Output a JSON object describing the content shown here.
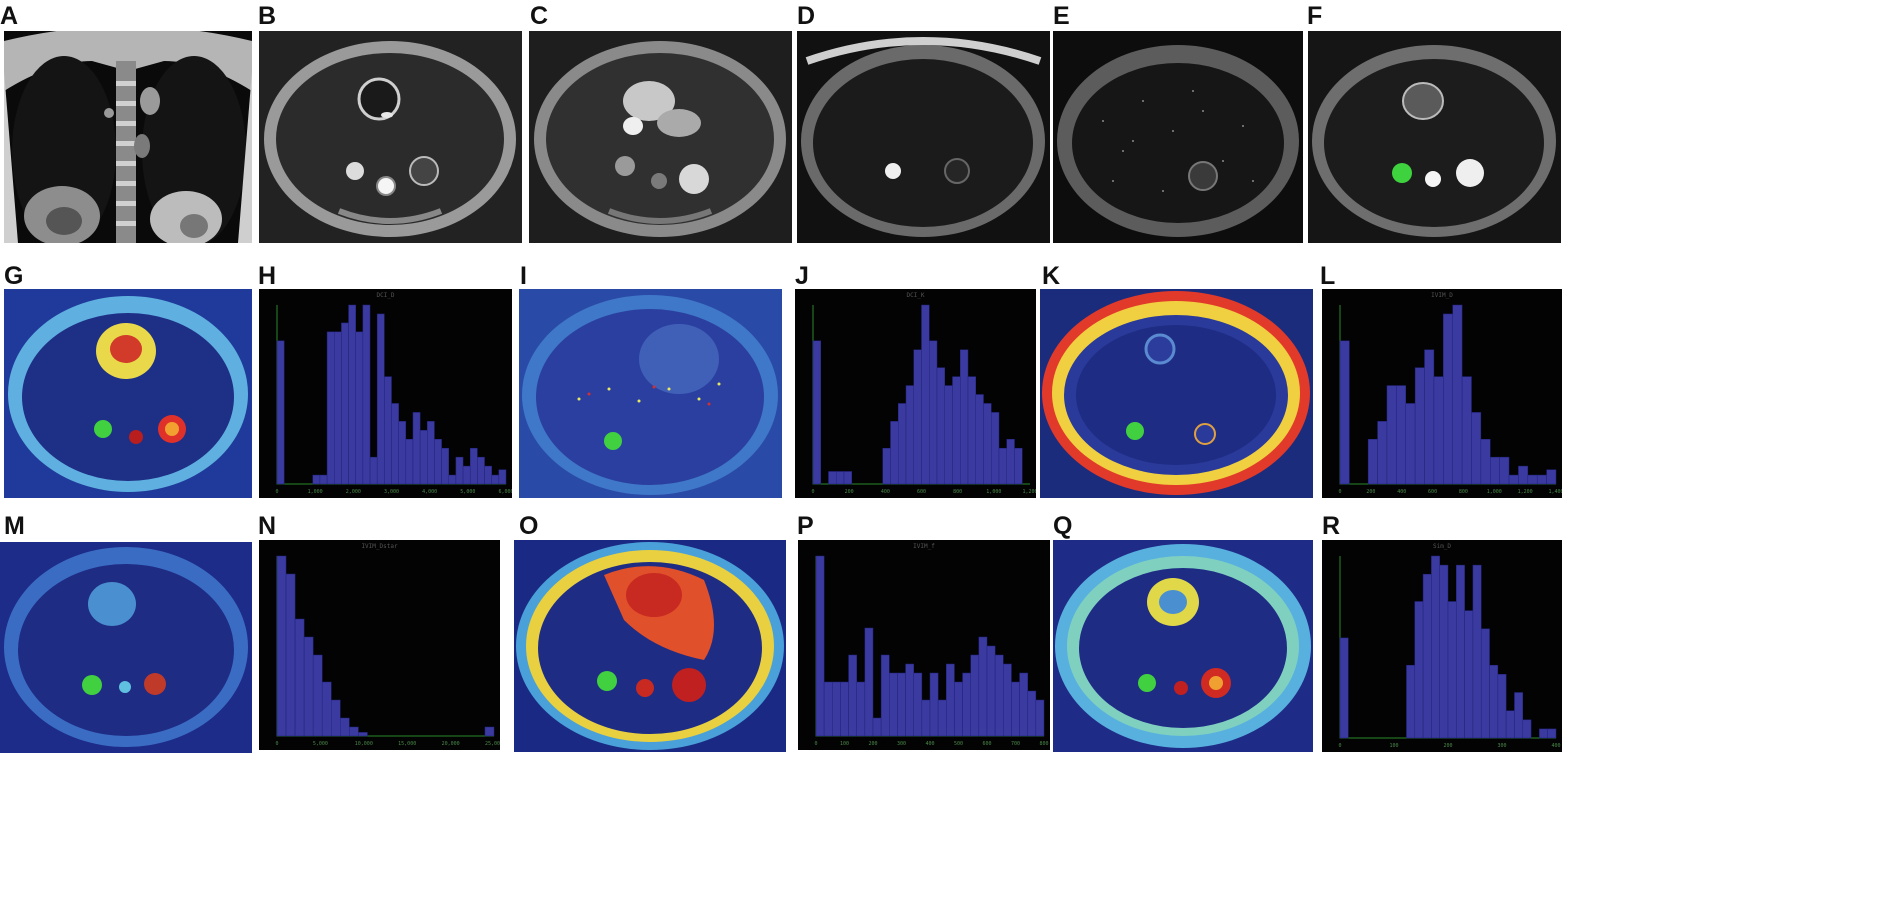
{
  "figure": {
    "panel_labels": [
      "A",
      "B",
      "C",
      "D",
      "E",
      "F",
      "G",
      "H",
      "I",
      "J",
      "K",
      "L",
      "M",
      "N",
      "O",
      "P",
      "Q",
      "R"
    ]
  },
  "histograms": [
    {
      "panel": "H",
      "title": "DCI_D",
      "bar_color": "#3a3aa0",
      "heights": [
        0.8,
        0,
        0,
        0,
        0,
        0.05,
        0.05,
        0.85,
        0.85,
        0.9,
        1.0,
        0.85,
        1.0,
        0.15,
        0.95,
        0.6,
        0.45,
        0.35,
        0.25,
        0.4,
        0.3,
        0.35,
        0.25,
        0.2,
        0.05,
        0.15,
        0.1,
        0.2,
        0.15,
        0.1,
        0.05,
        0.08
      ],
      "x_ticks": [
        "0",
        "1,000",
        "2,000",
        "3,000",
        "4,000",
        "5,000",
        "6,000"
      ]
    },
    {
      "panel": "J",
      "title": "DCI_K",
      "bar_color": "#3a3aa0",
      "heights": [
        0.8,
        0,
        0.07,
        0.07,
        0.07,
        0,
        0,
        0,
        0,
        0.2,
        0.35,
        0.45,
        0.55,
        0.75,
        1.0,
        0.8,
        0.65,
        0.55,
        0.6,
        0.75,
        0.6,
        0.5,
        0.45,
        0.4,
        0.2,
        0.25,
        0.2,
        0
      ],
      "x_ticks": [
        "0",
        "200",
        "400",
        "600",
        "800",
        "1,000",
        "1,200"
      ]
    },
    {
      "panel": "L",
      "title": "IVIM_D",
      "bar_color": "#3a3aa0",
      "heights": [
        0.8,
        0,
        0,
        0.25,
        0.35,
        0.55,
        0.55,
        0.45,
        0.65,
        0.75,
        0.6,
        0.95,
        1.0,
        0.6,
        0.4,
        0.25,
        0.15,
        0.15,
        0.05,
        0.1,
        0.05,
        0.05,
        0.08
      ],
      "x_ticks": [
        "0",
        "200",
        "400",
        "600",
        "800",
        "1,000",
        "1,200",
        "1,400"
      ]
    },
    {
      "panel": "N",
      "title": "IVIM_Dstar",
      "bar_color": "#3a3aa0",
      "heights": [
        1.0,
        0.9,
        0.65,
        0.55,
        0.45,
        0.3,
        0.2,
        0.1,
        0.05,
        0.02,
        0,
        0,
        0,
        0,
        0,
        0,
        0,
        0,
        0,
        0,
        0,
        0,
        0,
        0.05
      ],
      "x_ticks": [
        "0",
        "5,000",
        "10,000",
        "15,000",
        "20,000",
        "25,000"
      ]
    },
    {
      "panel": "P",
      "title": "IVIM_f",
      "bar_color": "#3a3aa0",
      "heights": [
        1.0,
        0.3,
        0.3,
        0.3,
        0.45,
        0.3,
        0.6,
        0.1,
        0.45,
        0.35,
        0.35,
        0.4,
        0.35,
        0.2,
        0.35,
        0.2,
        0.4,
        0.3,
        0.35,
        0.45,
        0.55,
        0.5,
        0.45,
        0.4,
        0.3,
        0.35,
        0.25,
        0.2
      ],
      "x_ticks": [
        "0",
        "100",
        "200",
        "300",
        "400",
        "500",
        "600",
        "700",
        "800"
      ]
    },
    {
      "panel": "R",
      "title": "Sim_D",
      "bar_color": "#3a3aa0",
      "heights": [
        0.55,
        0,
        0,
        0,
        0,
        0,
        0,
        0,
        0.4,
        0.75,
        0.9,
        1.0,
        0.95,
        0.75,
        0.95,
        0.7,
        0.95,
        0.6,
        0.4,
        0.35,
        0.15,
        0.25,
        0.1,
        0,
        0.05,
        0.05
      ],
      "x_ticks": [
        "0",
        "100",
        "200",
        "300",
        "400"
      ]
    }
  ]
}
